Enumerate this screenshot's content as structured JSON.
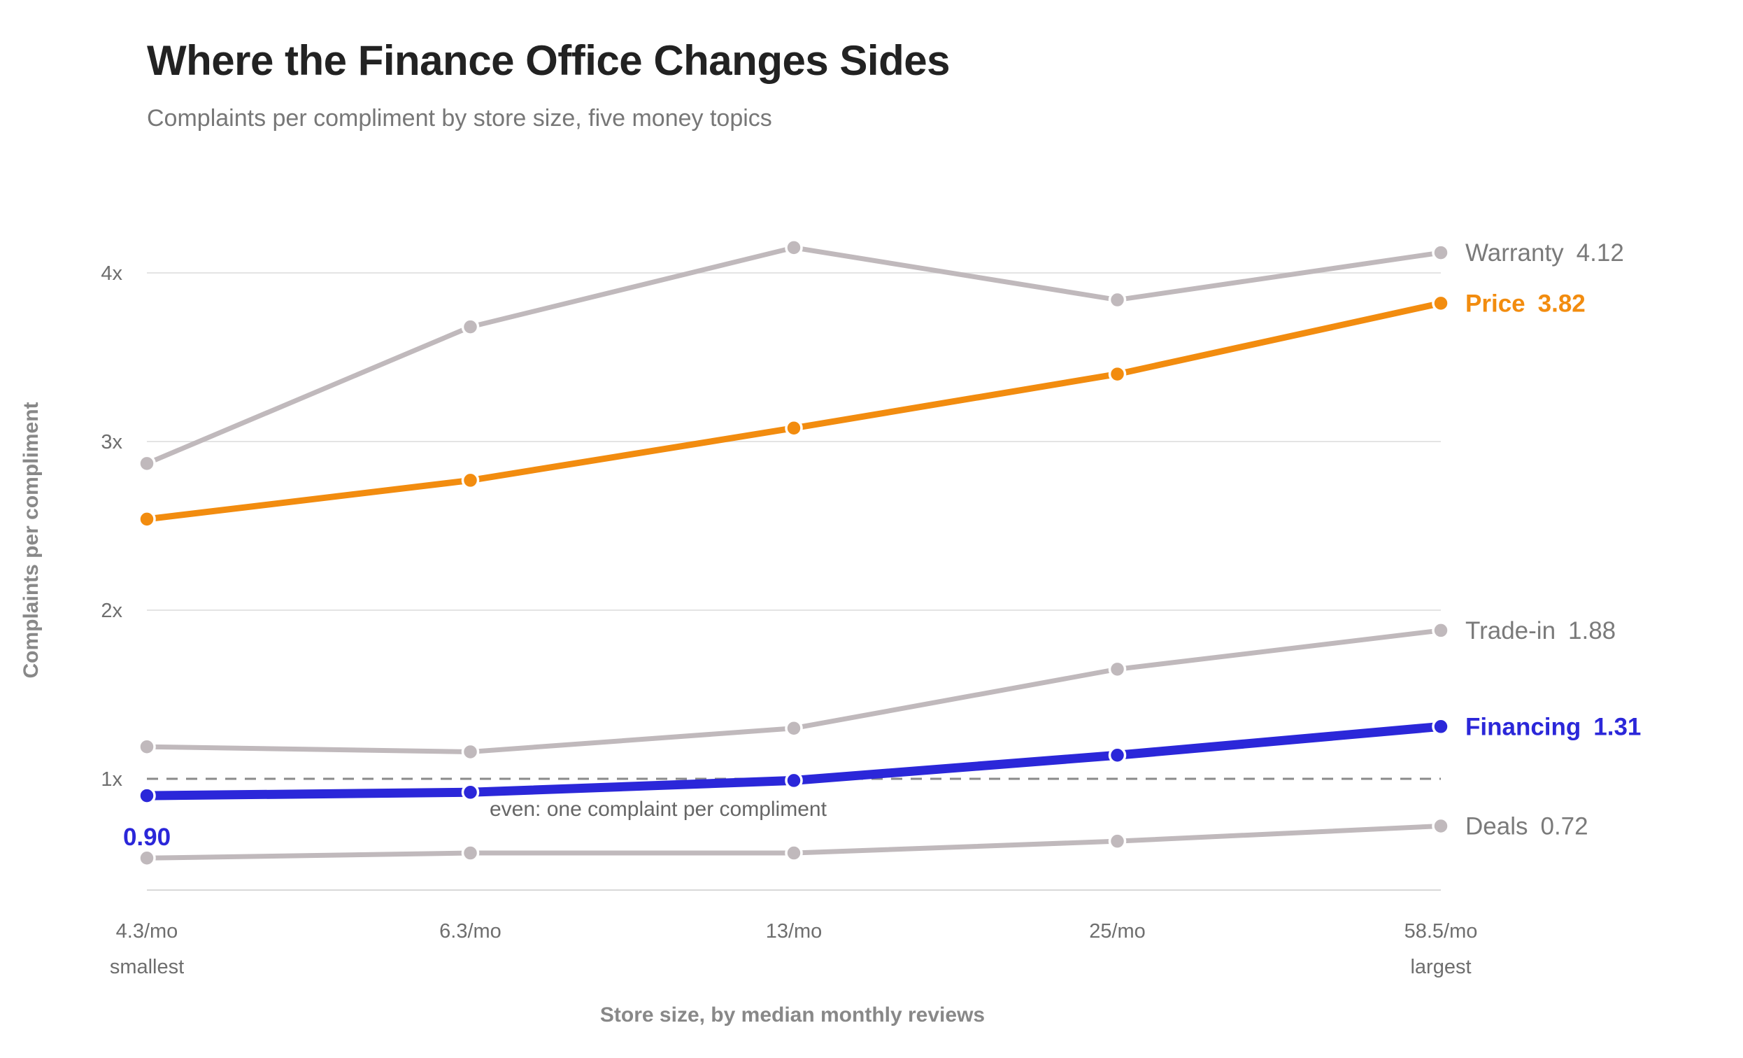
{
  "title": "Where the Finance Office Changes Sides",
  "subtitle": "Complaints per compliment by store size, five money topics",
  "chart_data": {
    "type": "line",
    "title": "Where the Finance Office Changes Sides",
    "subtitle": "Complaints per compliment by store size, five money topics",
    "xlabel": "Store size, by median monthly reviews",
    "ylabel": "Complaints per compliment",
    "x": [
      "4.3/mo",
      "6.3/mo",
      "13/mo",
      "25/mo",
      "58.5/mo"
    ],
    "x_sublabels": [
      "smallest",
      "",
      "",
      "",
      "largest"
    ],
    "yticks": [
      1,
      2,
      3,
      4
    ],
    "ytick_labels": [
      "1x",
      "2x",
      "3x",
      "4x"
    ],
    "ylim": [
      0.65,
      4.25
    ],
    "grid": true,
    "reference_line": {
      "y": 1,
      "label": "even: one complaint per compliment"
    },
    "series": [
      {
        "name": "Warranty",
        "values": [
          2.87,
          3.68,
          4.15,
          3.84,
          4.12
        ],
        "end_label": "4.12",
        "color": "#c0b9bc",
        "highlight": false
      },
      {
        "name": "Price",
        "values": [
          2.54,
          2.77,
          3.08,
          3.4,
          3.82
        ],
        "end_label": "3.82",
        "color": "#f28c0f",
        "highlight": true
      },
      {
        "name": "Trade-in",
        "values": [
          1.19,
          1.16,
          1.3,
          1.65,
          1.88
        ],
        "end_label": "1.88",
        "color": "#c0b9bc",
        "highlight": false
      },
      {
        "name": "Financing",
        "values": [
          0.9,
          0.92,
          0.99,
          1.14,
          1.31
        ],
        "end_label": "1.31",
        "start_label": "0.90",
        "color": "#2b27d9",
        "highlight": true
      },
      {
        "name": "Deals",
        "values": [
          0.53,
          0.56,
          0.56,
          0.63,
          0.72
        ],
        "end_label": "0.72",
        "color": "#c0b9bc",
        "highlight": false
      }
    ]
  }
}
